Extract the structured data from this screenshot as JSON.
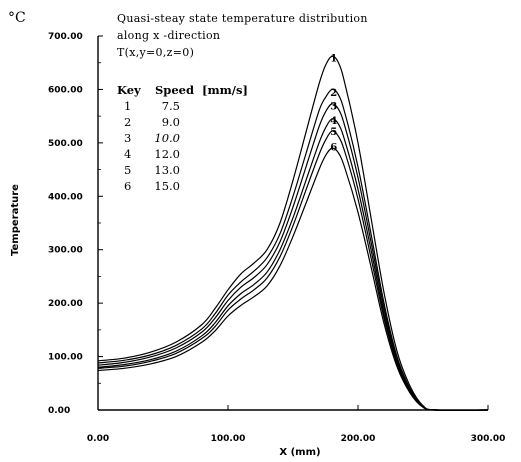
{
  "chart_data": {
    "type": "line",
    "unit_label": "°C",
    "annotation": [
      "Quasi-steay state temperature distribution",
      "along x -direction",
      "T(x,y=0,z=0)"
    ],
    "xlabel": "X (mm)",
    "ylabel": "Temperature",
    "xlim": [
      0,
      300
    ],
    "ylim": [
      0,
      700
    ],
    "x_ticks": [
      "0.00",
      "100.00",
      "200.00",
      "300.00"
    ],
    "y_ticks": [
      "0.00",
      "100.00",
      "200.00",
      "300.00",
      "400.00",
      "500.00",
      "600.00",
      "700.00"
    ],
    "grid": false,
    "legend": {
      "position": "top-left",
      "header": [
        "Key",
        "Speed",
        "[mm/s]"
      ],
      "rows": [
        {
          "key": "1",
          "speed": "7.5"
        },
        {
          "key": "2",
          "speed": "9.0"
        },
        {
          "key": "3",
          "speed": "10.0"
        },
        {
          "key": "4",
          "speed": "12.0"
        },
        {
          "key": "5",
          "speed": "13.0"
        },
        {
          "key": "6",
          "speed": "15.0"
        }
      ]
    },
    "x": [
      0,
      20,
      40,
      60,
      80,
      90,
      100,
      110,
      120,
      130,
      140,
      150,
      160,
      170,
      175,
      180,
      185,
      190,
      200,
      210,
      220,
      230,
      240,
      250,
      260,
      300
    ],
    "series": [
      {
        "name": "1",
        "label_at": [
          181,
          660
        ],
        "values": [
          92,
          97,
          108,
          127,
          160,
          190,
          225,
          255,
          275,
          300,
          350,
          430,
          520,
          610,
          645,
          662,
          650,
          610,
          500,
          360,
          220,
          110,
          45,
          8,
          0,
          0
        ]
      },
      {
        "name": "2",
        "label_at": [
          181,
          595
        ],
        "values": [
          88,
          93,
          103,
          121,
          152,
          180,
          215,
          240,
          260,
          285,
          330,
          400,
          480,
          560,
          585,
          600,
          590,
          555,
          455,
          330,
          200,
          100,
          40,
          7,
          0,
          0
        ]
      },
      {
        "name": "3",
        "label_at": [
          181,
          570
        ],
        "values": [
          84,
          89,
          99,
          116,
          146,
          172,
          205,
          230,
          248,
          272,
          315,
          380,
          455,
          530,
          558,
          573,
          563,
          530,
          435,
          315,
          190,
          95,
          38,
          7,
          0,
          0
        ]
      },
      {
        "name": "4",
        "label_at": [
          181,
          543
        ],
        "values": [
          80,
          85,
          94,
          110,
          139,
          163,
          195,
          218,
          235,
          258,
          300,
          360,
          430,
          500,
          528,
          545,
          535,
          503,
          413,
          300,
          180,
          90,
          36,
          6,
          0,
          0
        ]
      },
      {
        "name": "5",
        "label_at": [
          181,
          522
        ],
        "values": [
          78,
          82,
          91,
          106,
          134,
          156,
          187,
          208,
          225,
          247,
          287,
          345,
          412,
          478,
          505,
          522,
          512,
          482,
          395,
          285,
          172,
          86,
          34,
          6,
          0,
          0
        ]
      },
      {
        "name": "6",
        "label_at": [
          181,
          493
        ],
        "values": [
          74,
          78,
          86,
          100,
          127,
          148,
          176,
          196,
          212,
          232,
          270,
          325,
          387,
          450,
          476,
          490,
          481,
          452,
          370,
          268,
          162,
          81,
          32,
          5,
          0,
          0
        ]
      }
    ]
  }
}
